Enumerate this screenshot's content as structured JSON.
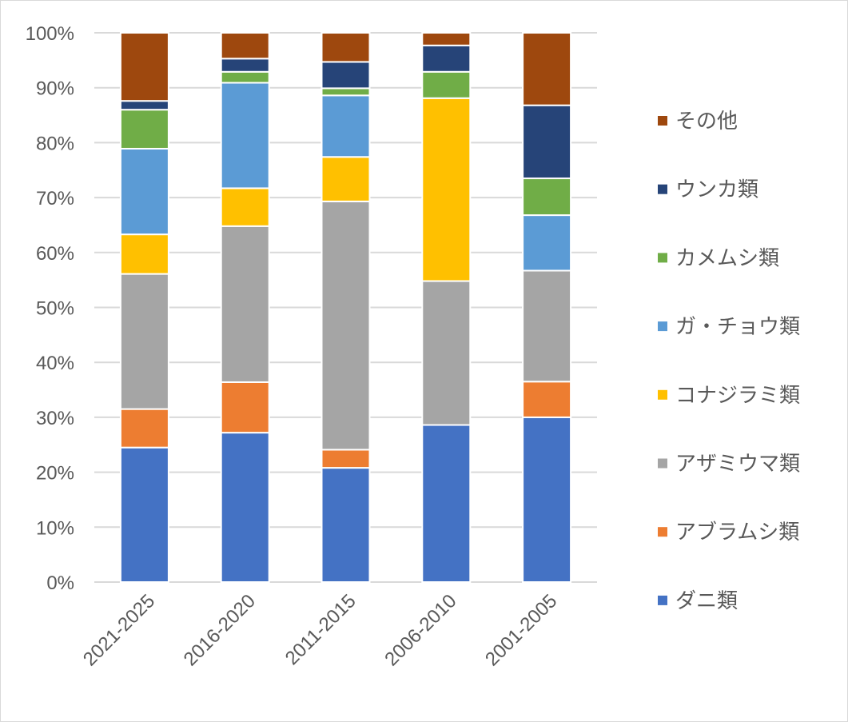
{
  "chart_data": {
    "type": "bar",
    "stacked": true,
    "percent": true,
    "title": "",
    "xlabel": "",
    "ylabel": "",
    "ylim": [
      0,
      100
    ],
    "y_ticks": [
      "0%",
      "10%",
      "20%",
      "30%",
      "40%",
      "50%",
      "60%",
      "70%",
      "80%",
      "90%",
      "100%"
    ],
    "grid": true,
    "legend_position": "right",
    "categories": [
      "2021-2025",
      "2016-2020",
      "2011-2015",
      "2006-2010",
      "2001-2005"
    ],
    "series": [
      {
        "name": "ダニ類",
        "color": "#4472c4",
        "values": [
          24.5,
          27.2,
          20.8,
          28.6,
          30.0
        ]
      },
      {
        "name": "アブラムシ類",
        "color": "#ed7d31",
        "values": [
          7.0,
          9.2,
          3.3,
          0,
          6.5
        ]
      },
      {
        "name": "アザミウマ類",
        "color": "#a5a5a5",
        "values": [
          24.6,
          28.4,
          45.2,
          26.2,
          20.2
        ]
      },
      {
        "name": "コナジラミ類",
        "color": "#ffc000",
        "values": [
          7.2,
          6.9,
          8.1,
          33.3,
          0
        ]
      },
      {
        "name": "ガ・チョウ類",
        "color": "#5b9bd5",
        "values": [
          15.6,
          19.2,
          11.2,
          0,
          10.1
        ]
      },
      {
        "name": "カメムシ類",
        "color": "#70ad47",
        "values": [
          7.1,
          2.0,
          1.3,
          4.8,
          6.7
        ]
      },
      {
        "name": "ウンカ類",
        "color": "#264478",
        "values": [
          1.6,
          2.4,
          4.8,
          4.8,
          13.3
        ]
      },
      {
        "name": "その他",
        "color": "#9e480e",
        "values": [
          12.4,
          4.7,
          5.3,
          2.3,
          13.2
        ]
      }
    ]
  }
}
